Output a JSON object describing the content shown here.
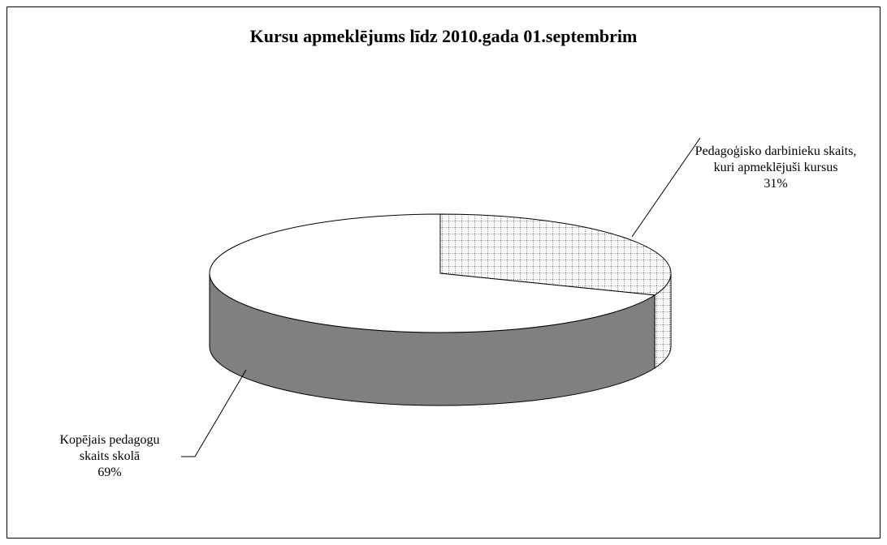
{
  "chart_data": {
    "type": "pie",
    "title": "Kursu apmeklējums līdz 2010.gada 01.septembrim",
    "categories": [
      "Pedagoģisko darbinieku skaits, kuri apmeklējuši kursus",
      "Kopējais pedagogu skaits skolā"
    ],
    "values": [
      31,
      69
    ],
    "value_labels": [
      "31%",
      "69%"
    ]
  }
}
